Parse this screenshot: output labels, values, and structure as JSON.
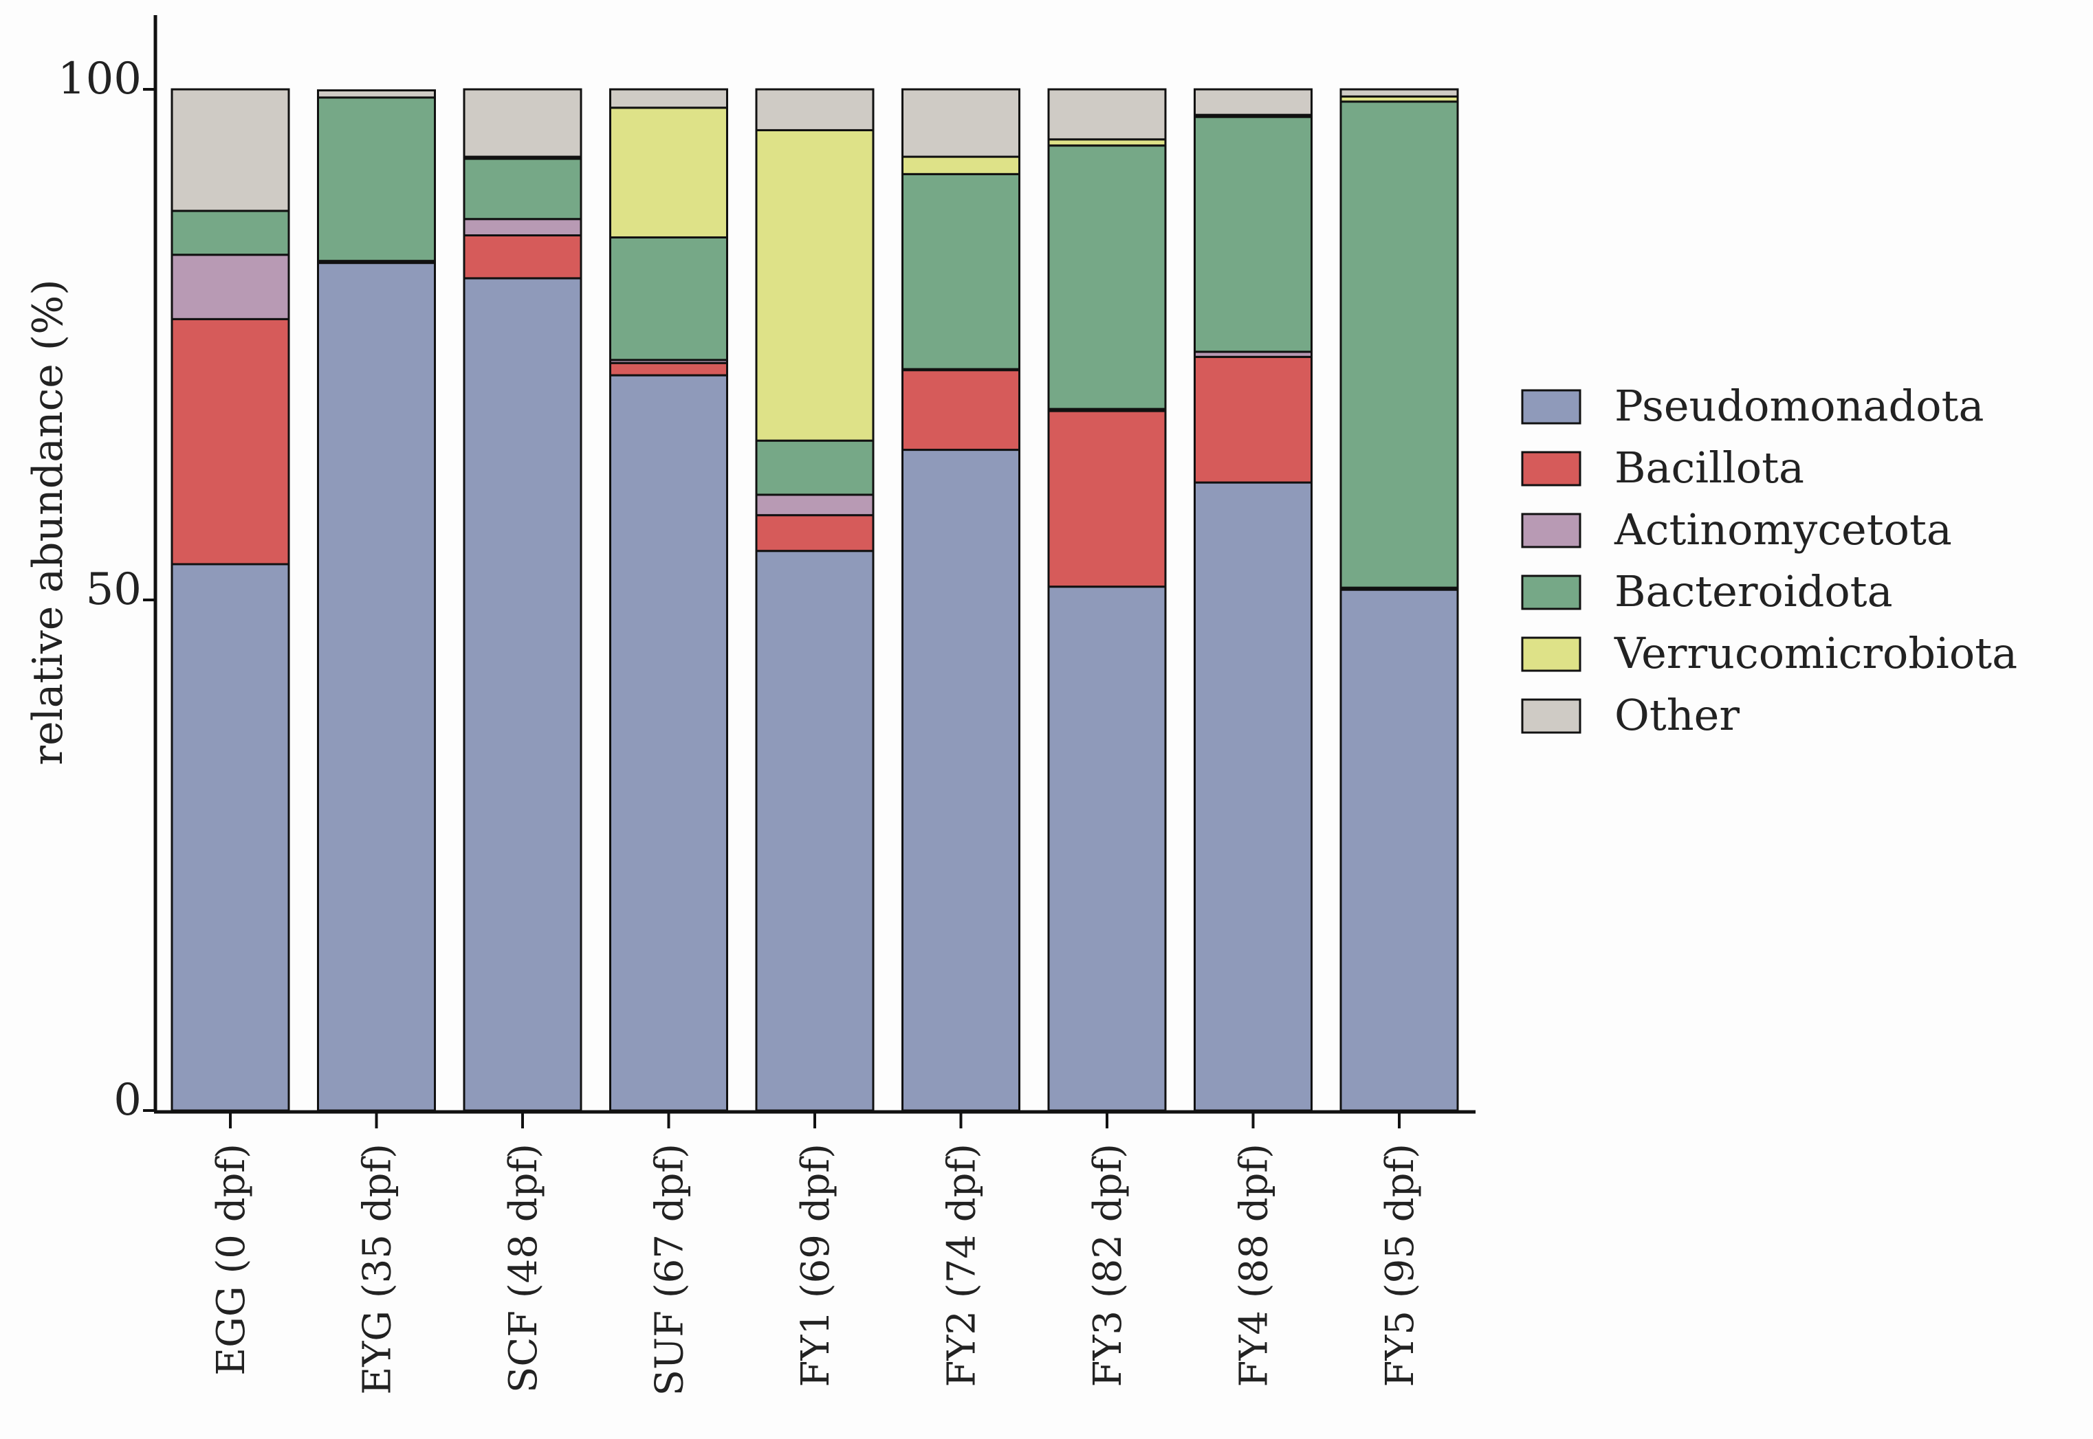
{
  "chart_data": {
    "type": "bar",
    "stacked": true,
    "title": "",
    "xlabel": "",
    "ylabel": "relative abundance (%)",
    "ylim": [
      0,
      100
    ],
    "yticks": [
      0,
      50,
      100
    ],
    "legend_position": "right",
    "categories": [
      "EGG (0 dpf)",
      "EYG (35 dpf)",
      "SCF (48 dpf)",
      "SUF (67 dpf)",
      "FY1 (69 dpf)",
      "FY2 (74 dpf)",
      "FY3 (82 dpf)",
      "FY4 (88 dpf)",
      "FY5 (95 dpf)"
    ],
    "series": [
      {
        "name": "Pseudomonadota",
        "color": "#8f9aba",
        "values": [
          53.5,
          83,
          81.5,
          72,
          54.8,
          64.7,
          51.3,
          61.5,
          51
        ]
      },
      {
        "name": "Bacillota",
        "color": "#d65b5a",
        "values": [
          24,
          0.1,
          4.2,
          1.2,
          3.5,
          7.8,
          17.2,
          12.3,
          0.1
        ]
      },
      {
        "name": "Actinomycetota",
        "color": "#b89ab4",
        "values": [
          6.3,
          0.1,
          1.6,
          0.3,
          2,
          0.1,
          0.2,
          0.5,
          0.1
        ]
      },
      {
        "name": "Bacteroidota",
        "color": "#76a887",
        "values": [
          4.3,
          16,
          5.9,
          12,
          5.3,
          19.1,
          25.8,
          23,
          47.6
        ]
      },
      {
        "name": "Verrucomicrobiota",
        "color": "#dee288",
        "values": [
          0,
          0,
          0.2,
          12.7,
          30.4,
          1.7,
          0.6,
          0.2,
          0.5
        ]
      },
      {
        "name": "Other",
        "color": "#cfcbc5",
        "values": [
          11.9,
          0.7,
          6.6,
          1.8,
          4,
          6.6,
          4.9,
          2.5,
          0.7
        ]
      }
    ]
  }
}
